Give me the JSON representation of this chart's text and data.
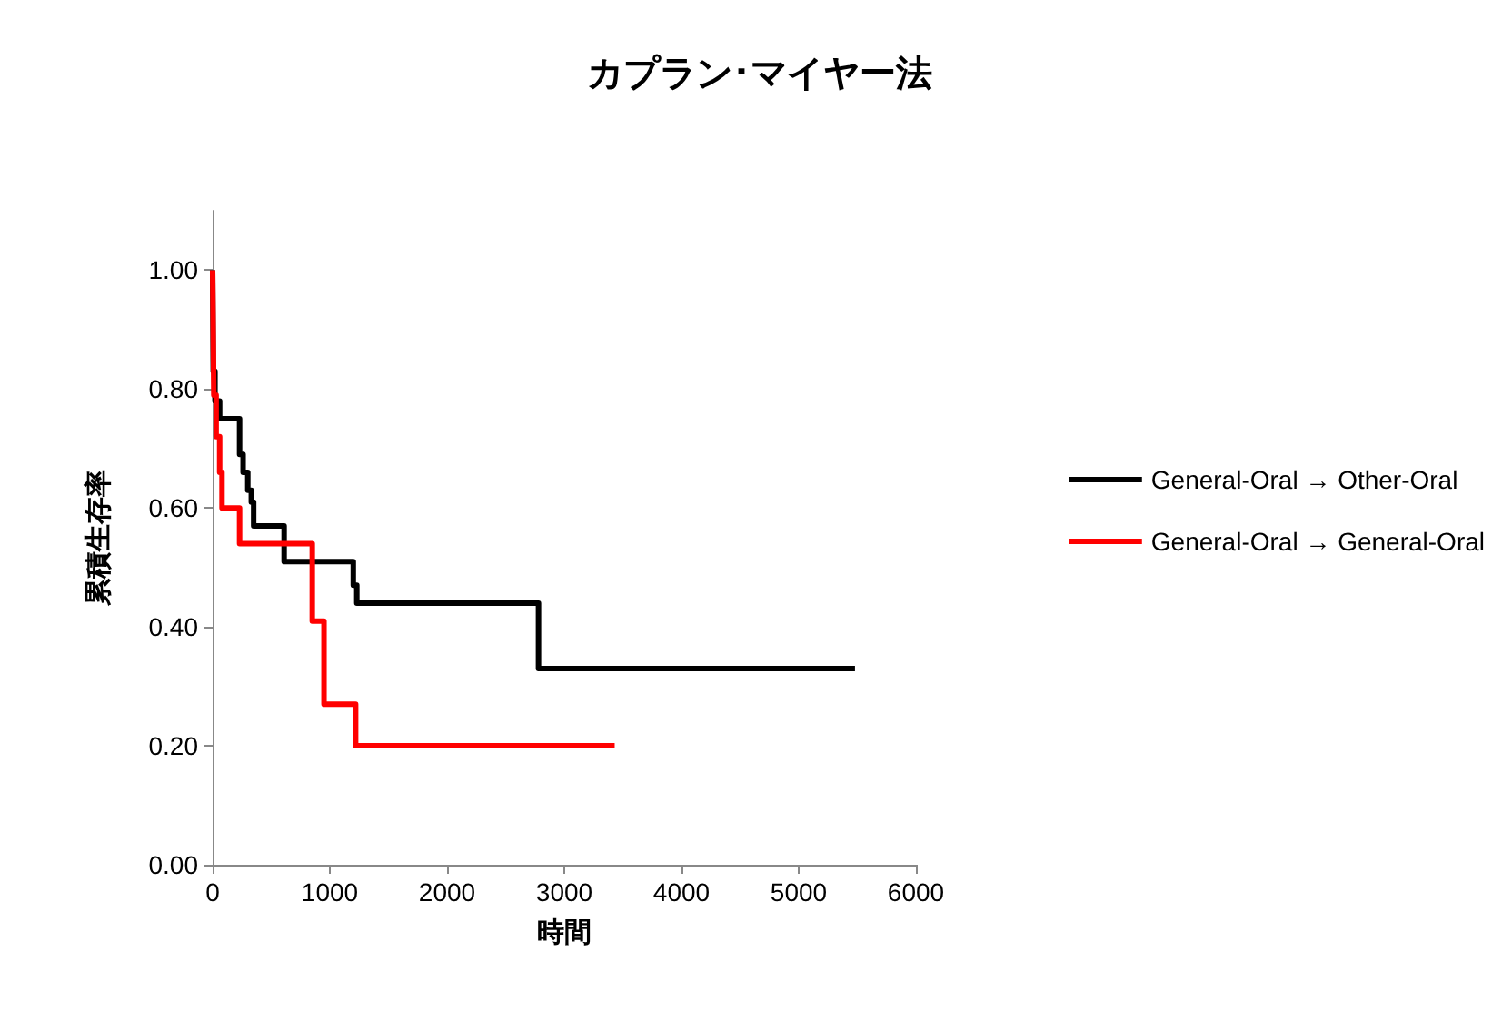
{
  "chart_data": {
    "type": "step",
    "title": "カプラン･マイヤー法",
    "xlabel": "時間",
    "ylabel": "累積生存率",
    "xlim": [
      0,
      6000
    ],
    "xticks": [
      0,
      1000,
      2000,
      3000,
      4000,
      5000,
      6000
    ],
    "ylim": [
      0,
      1.1
    ],
    "yticks": [
      {
        "value": 0,
        "label": "0.00"
      },
      {
        "value": 0.2,
        "label": "0.20"
      },
      {
        "value": 0.4,
        "label": "0.40"
      },
      {
        "value": 0.6,
        "label": "0.60"
      },
      {
        "value": 0.8,
        "label": "0.80"
      },
      {
        "value": 1,
        "label": "1.00"
      }
    ],
    "grid": false,
    "legend": "right",
    "marker": "none",
    "line_style": "solid",
    "series": [
      {
        "name": "General-Oral → Other-Oral",
        "color": "#000000",
        "x": [
          0,
          5,
          20,
          60,
          230,
          260,
          300,
          330,
          350,
          610,
          1200,
          1230,
          2780,
          5480
        ],
        "values": [
          1.0,
          0.83,
          0.78,
          0.75,
          0.69,
          0.66,
          0.63,
          0.61,
          0.57,
          0.51,
          0.47,
          0.44,
          0.33,
          0.33
        ]
      },
      {
        "name": "General-Oral → General-Oral",
        "color": "#ff0000",
        "x": [
          0,
          10,
          30,
          60,
          80,
          230,
          850,
          950,
          1220,
          3430
        ],
        "values": [
          1.0,
          0.79,
          0.72,
          0.66,
          0.6,
          0.54,
          0.41,
          0.27,
          0.2,
          0.2
        ]
      }
    ]
  }
}
